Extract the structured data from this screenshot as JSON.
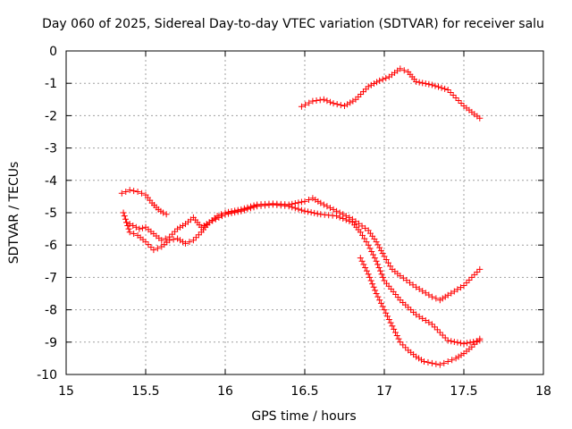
{
  "chart_data": {
    "type": "scatter",
    "title": "Day 060 of 2025, Sidereal Day-to-day VTEC variation (SDTVAR) for receiver salu",
    "xlabel": "GPS time / hours",
    "ylabel": "SDTVAR / TECUs",
    "xlim": [
      15,
      18
    ],
    "ylim": [
      -10,
      0
    ],
    "xticks": [
      15,
      15.5,
      16,
      16.5,
      17,
      17.5,
      18
    ],
    "xtick_labels": [
      "15",
      "15.5",
      "16",
      "16.5",
      "17",
      "17.5",
      "18"
    ],
    "yticks": [
      0,
      -1,
      -2,
      -3,
      -4,
      -5,
      -6,
      -7,
      -8,
      -9,
      -10
    ],
    "ytick_labels": [
      "0",
      "-1",
      "-2",
      "-3",
      "-4",
      "-5",
      "-6",
      "-7",
      "-8",
      "-9",
      "-10"
    ],
    "grid": true,
    "marker": "+",
    "color": "#ff0000",
    "series": [
      {
        "name": "arc-upper",
        "x": [
          16.48,
          16.55,
          16.62,
          16.68,
          16.75,
          16.82,
          16.9,
          16.97,
          17.03,
          17.1,
          17.15,
          17.2,
          17.3,
          17.4,
          17.5,
          17.6
        ],
        "y": [
          -1.72,
          -1.55,
          -1.5,
          -1.62,
          -1.7,
          -1.5,
          -1.1,
          -0.92,
          -0.8,
          -0.55,
          -0.65,
          -0.95,
          -1.05,
          -1.2,
          -1.7,
          -2.08
        ]
      },
      {
        "name": "arc-left-loop",
        "x": [
          15.35,
          15.4,
          15.45,
          15.5,
          15.54,
          15.58,
          15.61,
          15.63
        ],
        "y": [
          -4.4,
          -4.3,
          -4.35,
          -4.45,
          -4.7,
          -4.9,
          -5.0,
          -5.05
        ]
      },
      {
        "name": "arc-middle-a",
        "x": [
          15.36,
          15.4,
          15.45,
          15.5,
          15.55,
          15.6,
          15.65,
          15.7,
          15.75,
          15.8,
          15.85,
          15.9,
          15.95,
          16.0,
          16.1,
          16.2,
          16.3,
          16.4,
          16.5,
          16.55,
          16.6,
          16.7,
          16.8,
          16.9,
          16.95,
          17.0,
          17.05,
          17.1,
          17.2,
          17.3,
          17.35,
          17.4,
          17.5,
          17.6
        ],
        "y": [
          -5.0,
          -5.6,
          -5.7,
          -5.9,
          -6.15,
          -6.05,
          -5.85,
          -5.8,
          -5.95,
          -5.85,
          -5.6,
          -5.3,
          -5.1,
          -5.0,
          -4.9,
          -4.75,
          -4.72,
          -4.75,
          -4.65,
          -4.55,
          -4.7,
          -4.95,
          -5.2,
          -5.55,
          -5.9,
          -6.35,
          -6.75,
          -6.95,
          -7.3,
          -7.6,
          -7.7,
          -7.55,
          -7.25,
          -6.75
        ]
      },
      {
        "name": "arc-middle-b",
        "x": [
          15.38,
          15.42,
          15.46,
          15.5,
          15.55,
          15.6,
          15.65,
          15.7,
          15.75,
          15.8,
          15.85,
          15.9,
          16.0,
          16.1,
          16.2,
          16.3,
          16.4,
          16.5,
          16.6,
          16.7,
          16.8,
          16.85,
          16.9,
          16.95,
          17.0,
          17.1,
          17.2,
          17.3,
          17.4,
          17.5,
          17.6
        ],
        "y": [
          -5.3,
          -5.4,
          -5.5,
          -5.45,
          -5.65,
          -5.85,
          -5.75,
          -5.5,
          -5.35,
          -5.15,
          -5.45,
          -5.3,
          -5.05,
          -4.95,
          -4.8,
          -4.75,
          -4.8,
          -4.95,
          -5.05,
          -5.1,
          -5.3,
          -5.6,
          -6.0,
          -6.5,
          -7.1,
          -7.7,
          -8.15,
          -8.45,
          -8.95,
          -9.05,
          -8.95
        ]
      },
      {
        "name": "arc-lower",
        "x": [
          16.85,
          16.9,
          16.95,
          17.0,
          17.05,
          17.1,
          17.15,
          17.2,
          17.25,
          17.3,
          17.35,
          17.4,
          17.45,
          17.5,
          17.55,
          17.6
        ],
        "y": [
          -6.4,
          -6.9,
          -7.5,
          -8.0,
          -8.5,
          -9.0,
          -9.25,
          -9.45,
          -9.6,
          -9.65,
          -9.7,
          -9.6,
          -9.5,
          -9.35,
          -9.15,
          -8.9
        ]
      }
    ]
  }
}
